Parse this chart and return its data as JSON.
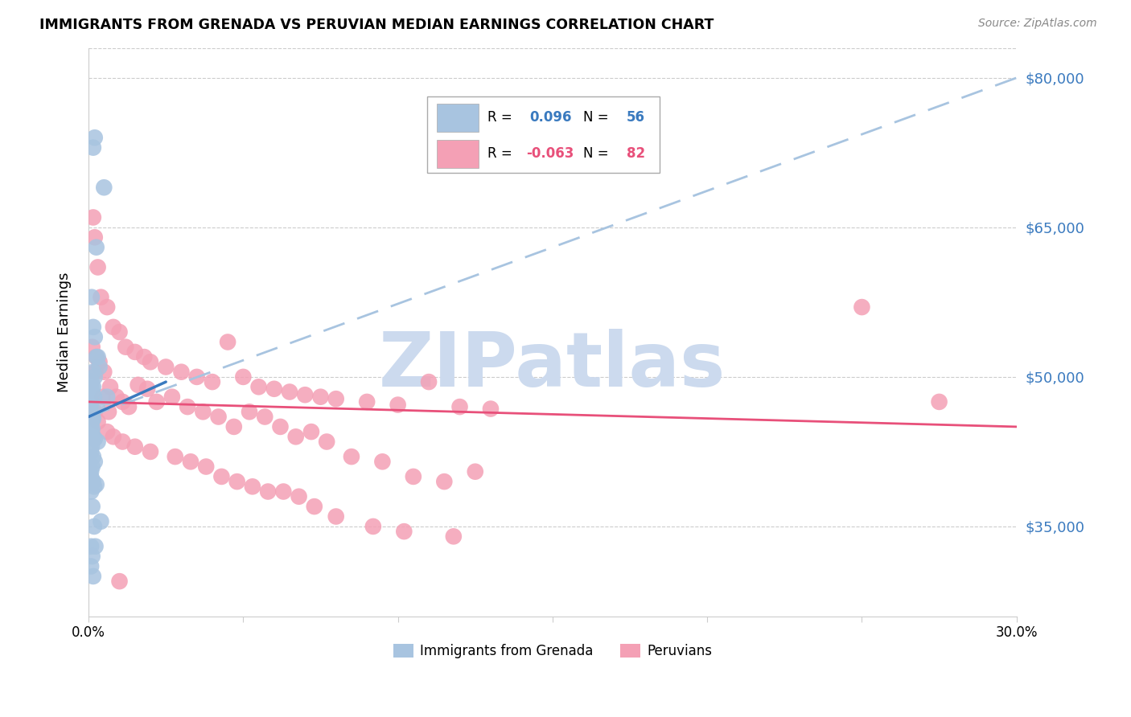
{
  "title": "IMMIGRANTS FROM GRENADA VS PERUVIAN MEDIAN EARNINGS CORRELATION CHART",
  "source": "Source: ZipAtlas.com",
  "ylabel": "Median Earnings",
  "y_ticks": [
    35000,
    50000,
    65000,
    80000
  ],
  "y_tick_labels": [
    "$35,000",
    "$50,000",
    "$65,000",
    "$80,000"
  ],
  "x_min": 0.0,
  "x_max": 30.0,
  "y_min": 26000,
  "y_max": 83000,
  "series1_color": "#a8c4e0",
  "series2_color": "#f4a0b5",
  "trendline1_color": "#3a7abf",
  "trendline2_color": "#e8507a",
  "dashed_line_color": "#a8c4e0",
  "watermark_color": "#ccdaee",
  "watermark_text": "ZIPatlas",
  "series1_label": "Immigrants from Grenada",
  "series2_label": "Peruvians",
  "blue_points_x": [
    0.15,
    0.2,
    0.5,
    0.25,
    0.1,
    0.15,
    0.2,
    0.25,
    0.3,
    0.35,
    0.15,
    0.2,
    0.1,
    0.15,
    0.1,
    0.12,
    0.18,
    0.08,
    0.06,
    0.05,
    0.07,
    0.1,
    0.12,
    0.15,
    0.1,
    0.08,
    0.05,
    0.12,
    0.1,
    0.08,
    0.15,
    0.2,
    0.3,
    0.6,
    0.1,
    0.08,
    0.15,
    0.2,
    0.12,
    0.08,
    0.05,
    0.1,
    0.15,
    0.25,
    0.18,
    0.08,
    0.12,
    0.4,
    0.18,
    0.08,
    0.22,
    0.12,
    0.08,
    0.15,
    0.12,
    0.28
  ],
  "blue_points_y": [
    73000,
    74000,
    69000,
    63000,
    58000,
    55000,
    54000,
    52000,
    52000,
    51000,
    50500,
    50000,
    49500,
    49000,
    49000,
    48500,
    48000,
    47500,
    47000,
    46800,
    46500,
    46200,
    46000,
    45800,
    45500,
    45200,
    45000,
    44800,
    44500,
    44200,
    44000,
    43800,
    43500,
    48000,
    43000,
    42500,
    42000,
    41500,
    41000,
    40500,
    40200,
    39800,
    39500,
    39200,
    39000,
    38500,
    37000,
    35500,
    35000,
    33000,
    33000,
    32000,
    31000,
    30000,
    46000,
    47000
  ],
  "pink_points_x": [
    0.15,
    0.2,
    0.3,
    0.4,
    0.6,
    0.8,
    1.0,
    1.2,
    1.5,
    1.8,
    2.0,
    2.5,
    3.0,
    3.5,
    4.0,
    4.5,
    5.0,
    5.5,
    6.0,
    6.5,
    7.0,
    7.5,
    8.0,
    9.0,
    10.0,
    11.0,
    12.0,
    13.0,
    0.25,
    0.35,
    0.5,
    0.7,
    0.9,
    1.1,
    1.3,
    1.6,
    1.9,
    2.2,
    2.7,
    3.2,
    3.7,
    4.2,
    4.7,
    5.2,
    5.7,
    6.2,
    6.7,
    7.2,
    7.7,
    8.5,
    9.5,
    10.5,
    11.5,
    12.5,
    0.2,
    0.3,
    0.6,
    0.8,
    1.1,
    1.5,
    2.0,
    2.8,
    3.3,
    3.8,
    4.3,
    4.8,
    5.3,
    5.8,
    6.3,
    6.8,
    7.3,
    8.0,
    9.2,
    10.2,
    11.8,
    25.0,
    27.5,
    0.12,
    0.22,
    0.45,
    0.65,
    1.0
  ],
  "pink_points_y": [
    66000,
    64000,
    61000,
    58000,
    57000,
    55000,
    54500,
    53000,
    52500,
    52000,
    51500,
    51000,
    50500,
    50000,
    49500,
    53500,
    50000,
    49000,
    48800,
    48500,
    48200,
    48000,
    47800,
    47500,
    47200,
    49500,
    47000,
    46800,
    52000,
    51500,
    50500,
    49000,
    48000,
    47500,
    47000,
    49200,
    48800,
    47500,
    48000,
    47000,
    46500,
    46000,
    45000,
    46500,
    46000,
    45000,
    44000,
    44500,
    43500,
    42000,
    41500,
    40000,
    39500,
    40500,
    46500,
    45500,
    44500,
    44000,
    43500,
    43000,
    42500,
    42000,
    41500,
    41000,
    40000,
    39500,
    39000,
    38500,
    38500,
    38000,
    37000,
    36000,
    35000,
    34500,
    34000,
    57000,
    47500,
    53000,
    50500,
    48000,
    46500,
    29500
  ],
  "blue_trendline_x0": 0.0,
  "blue_trendline_x1": 2.5,
  "blue_trendline_y0": 46000,
  "blue_trendline_y1": 49500,
  "blue_dashed_x0": 0.0,
  "blue_dashed_x1": 30.0,
  "blue_dashed_y0": 46000,
  "blue_dashed_y1": 80000,
  "pink_trendline_x0": 0.0,
  "pink_trendline_x1": 30.0,
  "pink_trendline_y0": 47500,
  "pink_trendline_y1": 45000
}
